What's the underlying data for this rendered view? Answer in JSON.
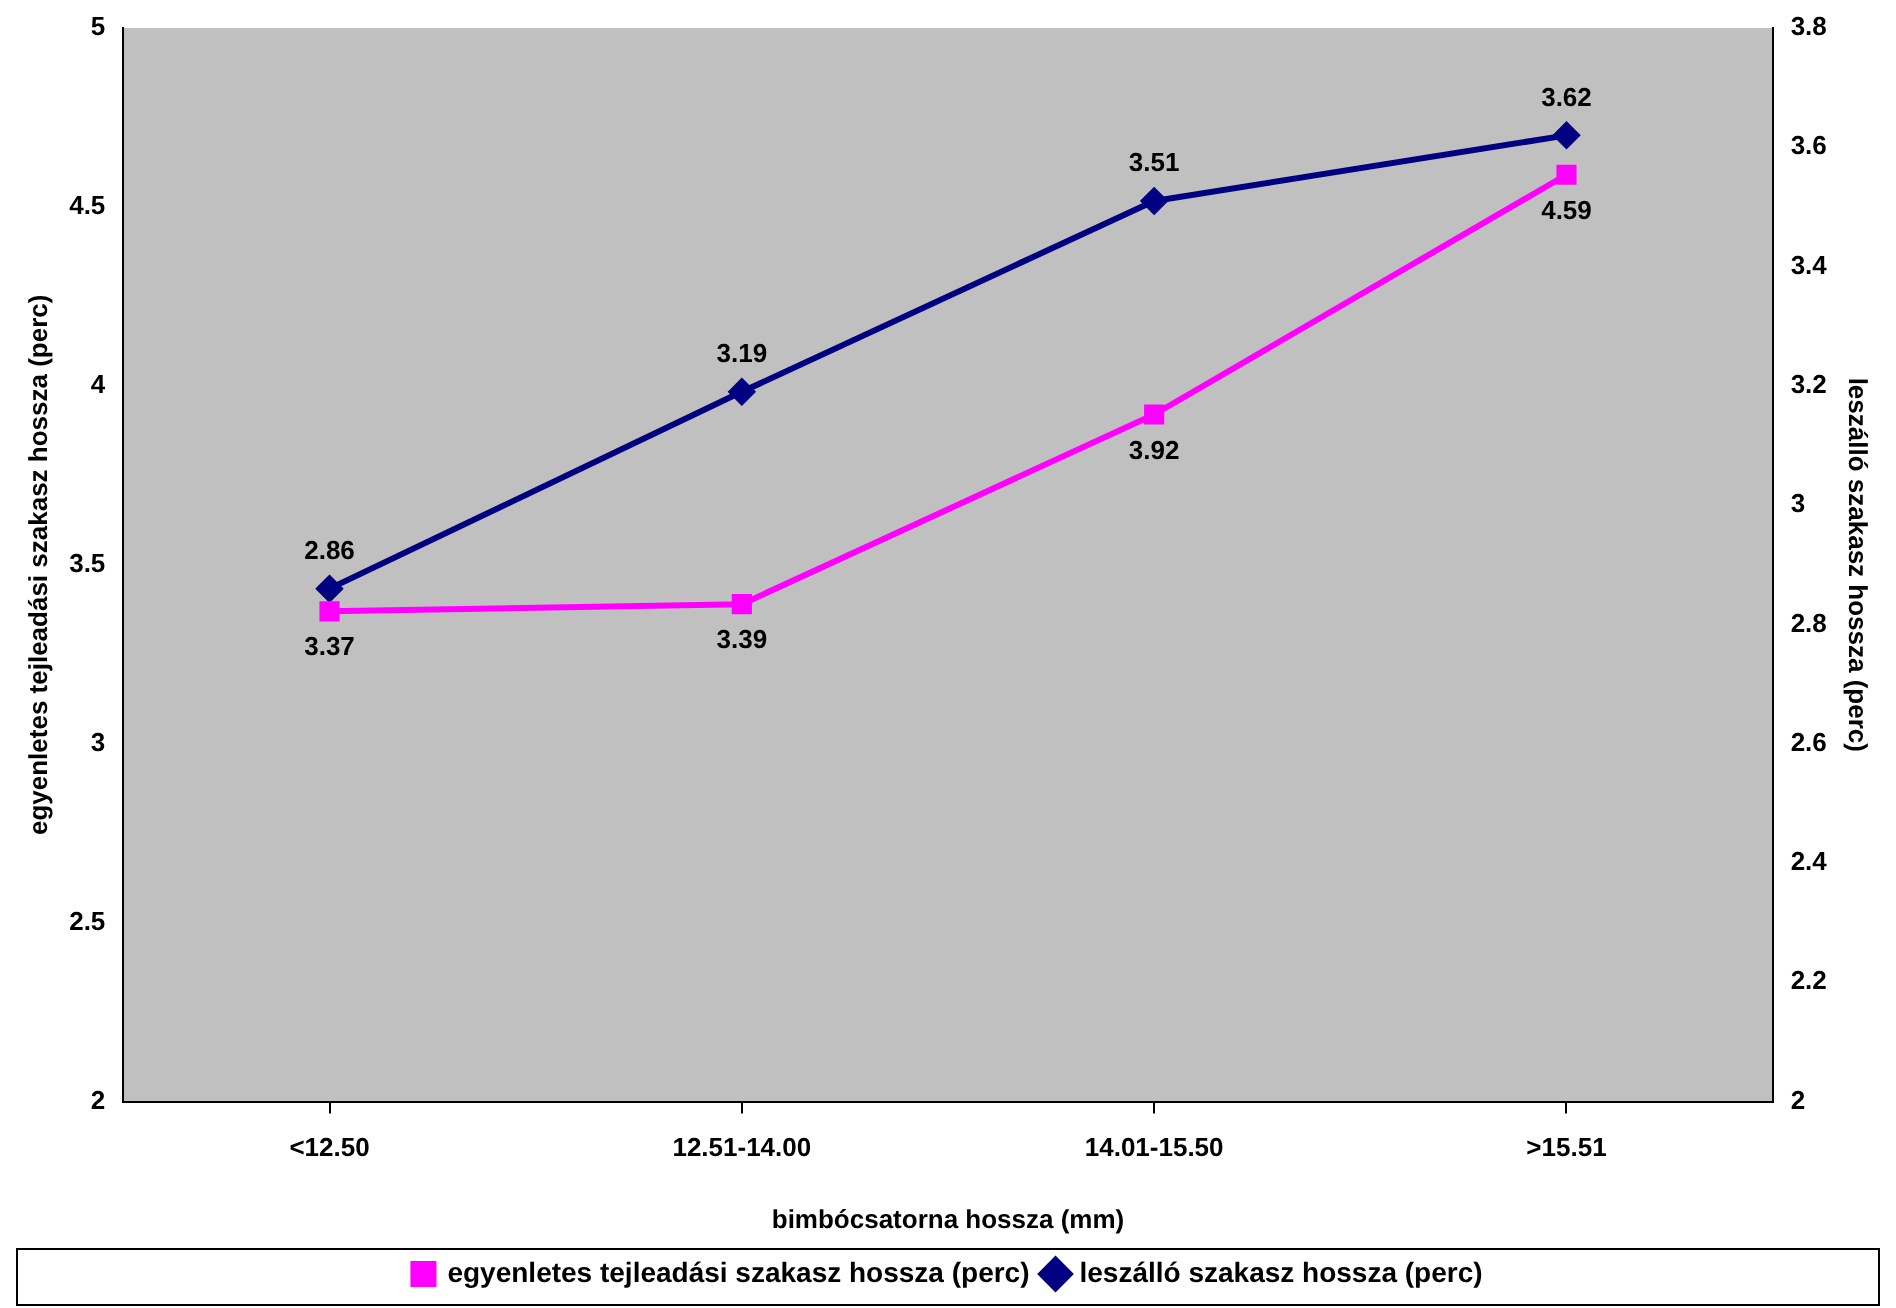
{
  "chart_data": {
    "type": "line",
    "xlabel": "bimbócsatorna hossza (mm)",
    "ylabel": "egyenletes tejleadási szakasz hossza (perc)",
    "y2label": "leszálló szakasz hossza (perc)",
    "categories": [
      "<12.50",
      "12.51-14.00",
      "14.01-15.50",
      ">15.51"
    ],
    "series": [
      {
        "name": "egyenletes tejleadási szakasz hossza (perc)",
        "color": "#ff00ff",
        "values": [
          3.37,
          3.39,
          3.92,
          4.59
        ],
        "marker": "square"
      },
      {
        "name": "leszálló szakasz hossza (perc)",
        "color": "#000080",
        "values": [
          2.86,
          3.19,
          3.51,
          3.62
        ],
        "marker": "diamond",
        "axis": "y2"
      }
    ],
    "ylim": [
      2,
      5
    ],
    "yticks": [
      2,
      2.5,
      3,
      3.5,
      4,
      4.5,
      5
    ],
    "y2lim": [
      2,
      3.8
    ],
    "y2ticks": [
      2,
      2.2,
      2.4,
      2.6,
      2.8,
      3,
      3.2,
      3.4,
      3.6,
      3.8
    ],
    "grid": false,
    "legend": "bottom",
    "data_labels": true,
    "line_style": "solid"
  }
}
